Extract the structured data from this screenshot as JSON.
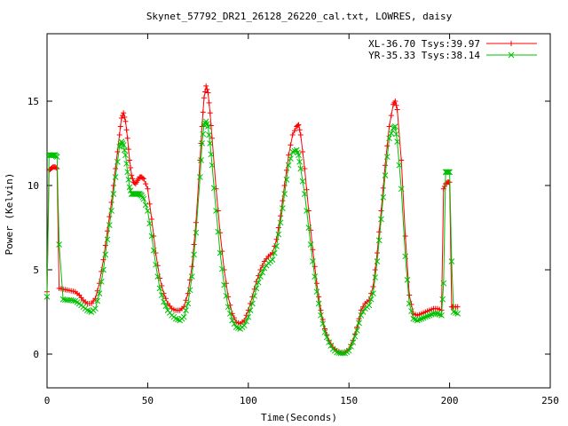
{
  "chart_data": {
    "type": "line",
    "title": "Skynet_57792_DR21_26128_26220_cal.txt, LOWRES, daisy",
    "xlabel": "Time(Seconds)",
    "ylabel": "Power (Kelvin)",
    "xlim": [
      0,
      250
    ],
    "ylim": [
      -2,
      19
    ],
    "xticks": [
      0,
      50,
      100,
      150,
      200,
      250
    ],
    "yticks": [
      0,
      5,
      10,
      15
    ],
    "grid": false,
    "legend_position": "top-right",
    "series": [
      {
        "name": "XL-36.70 Tsys:39.97",
        "color": "#ff0000",
        "marker": "plus",
        "x": [
          0,
          1,
          2,
          3,
          4,
          5,
          6,
          8,
          10,
          12,
          14,
          16,
          18,
          20,
          22,
          24,
          26,
          28,
          30,
          32,
          34,
          36,
          37,
          38,
          39,
          40,
          41,
          42,
          43,
          44,
          45,
          46,
          47,
          48,
          50,
          52,
          54,
          56,
          58,
          60,
          62,
          64,
          66,
          68,
          70,
          72,
          74,
          76,
          77,
          78,
          79,
          80,
          81,
          82,
          84,
          86,
          88,
          90,
          92,
          94,
          96,
          98,
          100,
          102,
          104,
          106,
          108,
          110,
          112,
          114,
          116,
          118,
          120,
          122,
          124,
          125,
          126,
          128,
          130,
          132,
          134,
          136,
          138,
          140,
          142,
          144,
          146,
          148,
          150,
          152,
          154,
          156,
          158,
          160,
          162,
          164,
          166,
          168,
          170,
          172,
          173,
          174,
          176,
          178,
          180,
          182,
          184,
          186,
          188,
          190,
          192,
          194,
          196,
          197,
          198,
          199,
          200,
          201,
          202,
          204
        ],
        "y": [
          3.7,
          10.9,
          11.0,
          11.1,
          11.1,
          11.0,
          3.9,
          3.85,
          3.8,
          3.75,
          3.7,
          3.5,
          3.2,
          3.0,
          3.0,
          3.3,
          4.2,
          5.6,
          7.3,
          9.0,
          11.0,
          13.0,
          14.0,
          14.3,
          13.8,
          12.8,
          11.5,
          10.6,
          10.2,
          10.1,
          10.3,
          10.5,
          10.5,
          10.4,
          9.8,
          8.0,
          6.0,
          4.5,
          3.6,
          3.0,
          2.7,
          2.6,
          2.6,
          2.8,
          3.6,
          5.2,
          7.8,
          11.5,
          13.5,
          15.2,
          15.9,
          15.5,
          14.3,
          12.8,
          9.8,
          7.2,
          5.0,
          3.4,
          2.4,
          1.9,
          1.8,
          2.0,
          2.6,
          3.4,
          4.3,
          5.0,
          5.5,
          5.8,
          6.0,
          6.8,
          8.2,
          10.0,
          11.8,
          13.0,
          13.5,
          13.6,
          13.0,
          11.0,
          8.5,
          6.2,
          4.2,
          2.6,
          1.5,
          0.8,
          0.4,
          0.2,
          0.1,
          0.1,
          0.3,
          0.8,
          1.6,
          2.6,
          3.0,
          3.2,
          4.0,
          6.0,
          8.5,
          11.2,
          13.5,
          14.8,
          15.0,
          14.5,
          11.5,
          7.0,
          3.5,
          2.4,
          2.3,
          2.4,
          2.5,
          2.6,
          2.7,
          2.7,
          2.6,
          9.8,
          10.1,
          10.2,
          10.2,
          2.8,
          2.8,
          2.8
        ]
      },
      {
        "name": "YR-35.33 Tsys:38.14",
        "color": "#00c000",
        "marker": "cross",
        "x": [
          0,
          1,
          2,
          3,
          4,
          5,
          6,
          8,
          10,
          12,
          14,
          16,
          18,
          20,
          22,
          24,
          26,
          28,
          30,
          32,
          34,
          36,
          37,
          38,
          39,
          40,
          41,
          42,
          43,
          44,
          45,
          46,
          47,
          48,
          50,
          52,
          54,
          56,
          58,
          60,
          62,
          64,
          66,
          68,
          70,
          72,
          74,
          76,
          77,
          78,
          79,
          80,
          81,
          82,
          84,
          86,
          88,
          90,
          92,
          94,
          96,
          98,
          100,
          102,
          104,
          106,
          108,
          110,
          112,
          114,
          116,
          118,
          120,
          122,
          124,
          125,
          126,
          128,
          130,
          132,
          134,
          136,
          138,
          140,
          142,
          144,
          146,
          148,
          150,
          152,
          154,
          156,
          158,
          160,
          162,
          164,
          166,
          168,
          170,
          172,
          173,
          174,
          176,
          178,
          180,
          182,
          184,
          186,
          188,
          190,
          192,
          194,
          196,
          197,
          198,
          199,
          200,
          201,
          202,
          204
        ],
        "y": [
          3.4,
          11.8,
          11.8,
          11.8,
          11.8,
          11.7,
          6.5,
          3.25,
          3.2,
          3.2,
          3.15,
          3.0,
          2.8,
          2.6,
          2.5,
          2.7,
          3.6,
          5.0,
          6.8,
          8.5,
          10.5,
          12.3,
          12.6,
          12.4,
          11.8,
          10.8,
          9.9,
          9.5,
          9.5,
          9.5,
          9.5,
          9.5,
          9.4,
          9.2,
          8.5,
          7.0,
          5.3,
          3.9,
          3.1,
          2.6,
          2.3,
          2.1,
          2.0,
          2.2,
          3.0,
          4.6,
          7.2,
          10.5,
          12.5,
          13.6,
          13.8,
          13.5,
          12.5,
          11.2,
          8.5,
          6.0,
          4.1,
          2.8,
          2.0,
          1.6,
          1.5,
          1.7,
          2.2,
          3.0,
          3.9,
          4.6,
          5.1,
          5.4,
          5.6,
          6.4,
          7.8,
          9.5,
          11.2,
          12.0,
          12.1,
          11.8,
          11.0,
          9.5,
          7.5,
          5.5,
          3.7,
          2.3,
          1.3,
          0.7,
          0.3,
          0.1,
          0.05,
          0.05,
          0.2,
          0.7,
          1.4,
          2.3,
          2.7,
          2.9,
          3.6,
          5.5,
          8.0,
          10.6,
          12.8,
          13.4,
          13.5,
          12.6,
          9.8,
          5.8,
          3.0,
          2.1,
          2.0,
          2.1,
          2.2,
          2.3,
          2.4,
          2.4,
          2.3,
          4.2,
          10.8,
          10.8,
          10.8,
          5.5,
          2.5,
          2.4
        ]
      }
    ]
  }
}
